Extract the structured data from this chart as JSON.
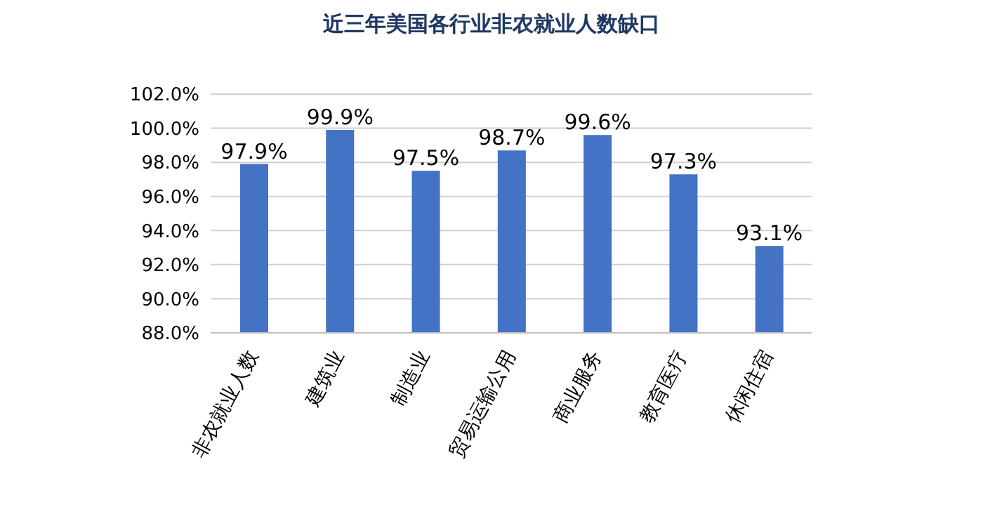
{
  "chart_data": {
    "type": "bar",
    "title": "近三年美国各行业非农就业人数缺口",
    "categories": [
      "非农就业人数",
      "建筑业",
      "制造业",
      "贸易运输公用",
      "商业服务",
      "教育医疗",
      "休闲住宿"
    ],
    "values": [
      97.9,
      99.9,
      97.5,
      98.7,
      99.6,
      97.3,
      93.1
    ],
    "value_labels": [
      "97.9%",
      "99.9%",
      "97.5%",
      "98.7%",
      "99.6%",
      "97.3%",
      "93.1%"
    ],
    "color": "#4472c4",
    "ylim": [
      88,
      102
    ],
    "yticks": [
      {
        "value": 88,
        "label": "88.0%"
      },
      {
        "value": 90,
        "label": "90.0%"
      },
      {
        "value": 92,
        "label": "92.0%"
      },
      {
        "value": 94,
        "label": "94.0%"
      },
      {
        "value": 96,
        "label": "96.0%"
      },
      {
        "value": 98,
        "label": "98.0%"
      },
      {
        "value": 100,
        "label": "100.0%"
      },
      {
        "value": 102,
        "label": "102.0%"
      }
    ],
    "grid": "y",
    "legend": false
  }
}
